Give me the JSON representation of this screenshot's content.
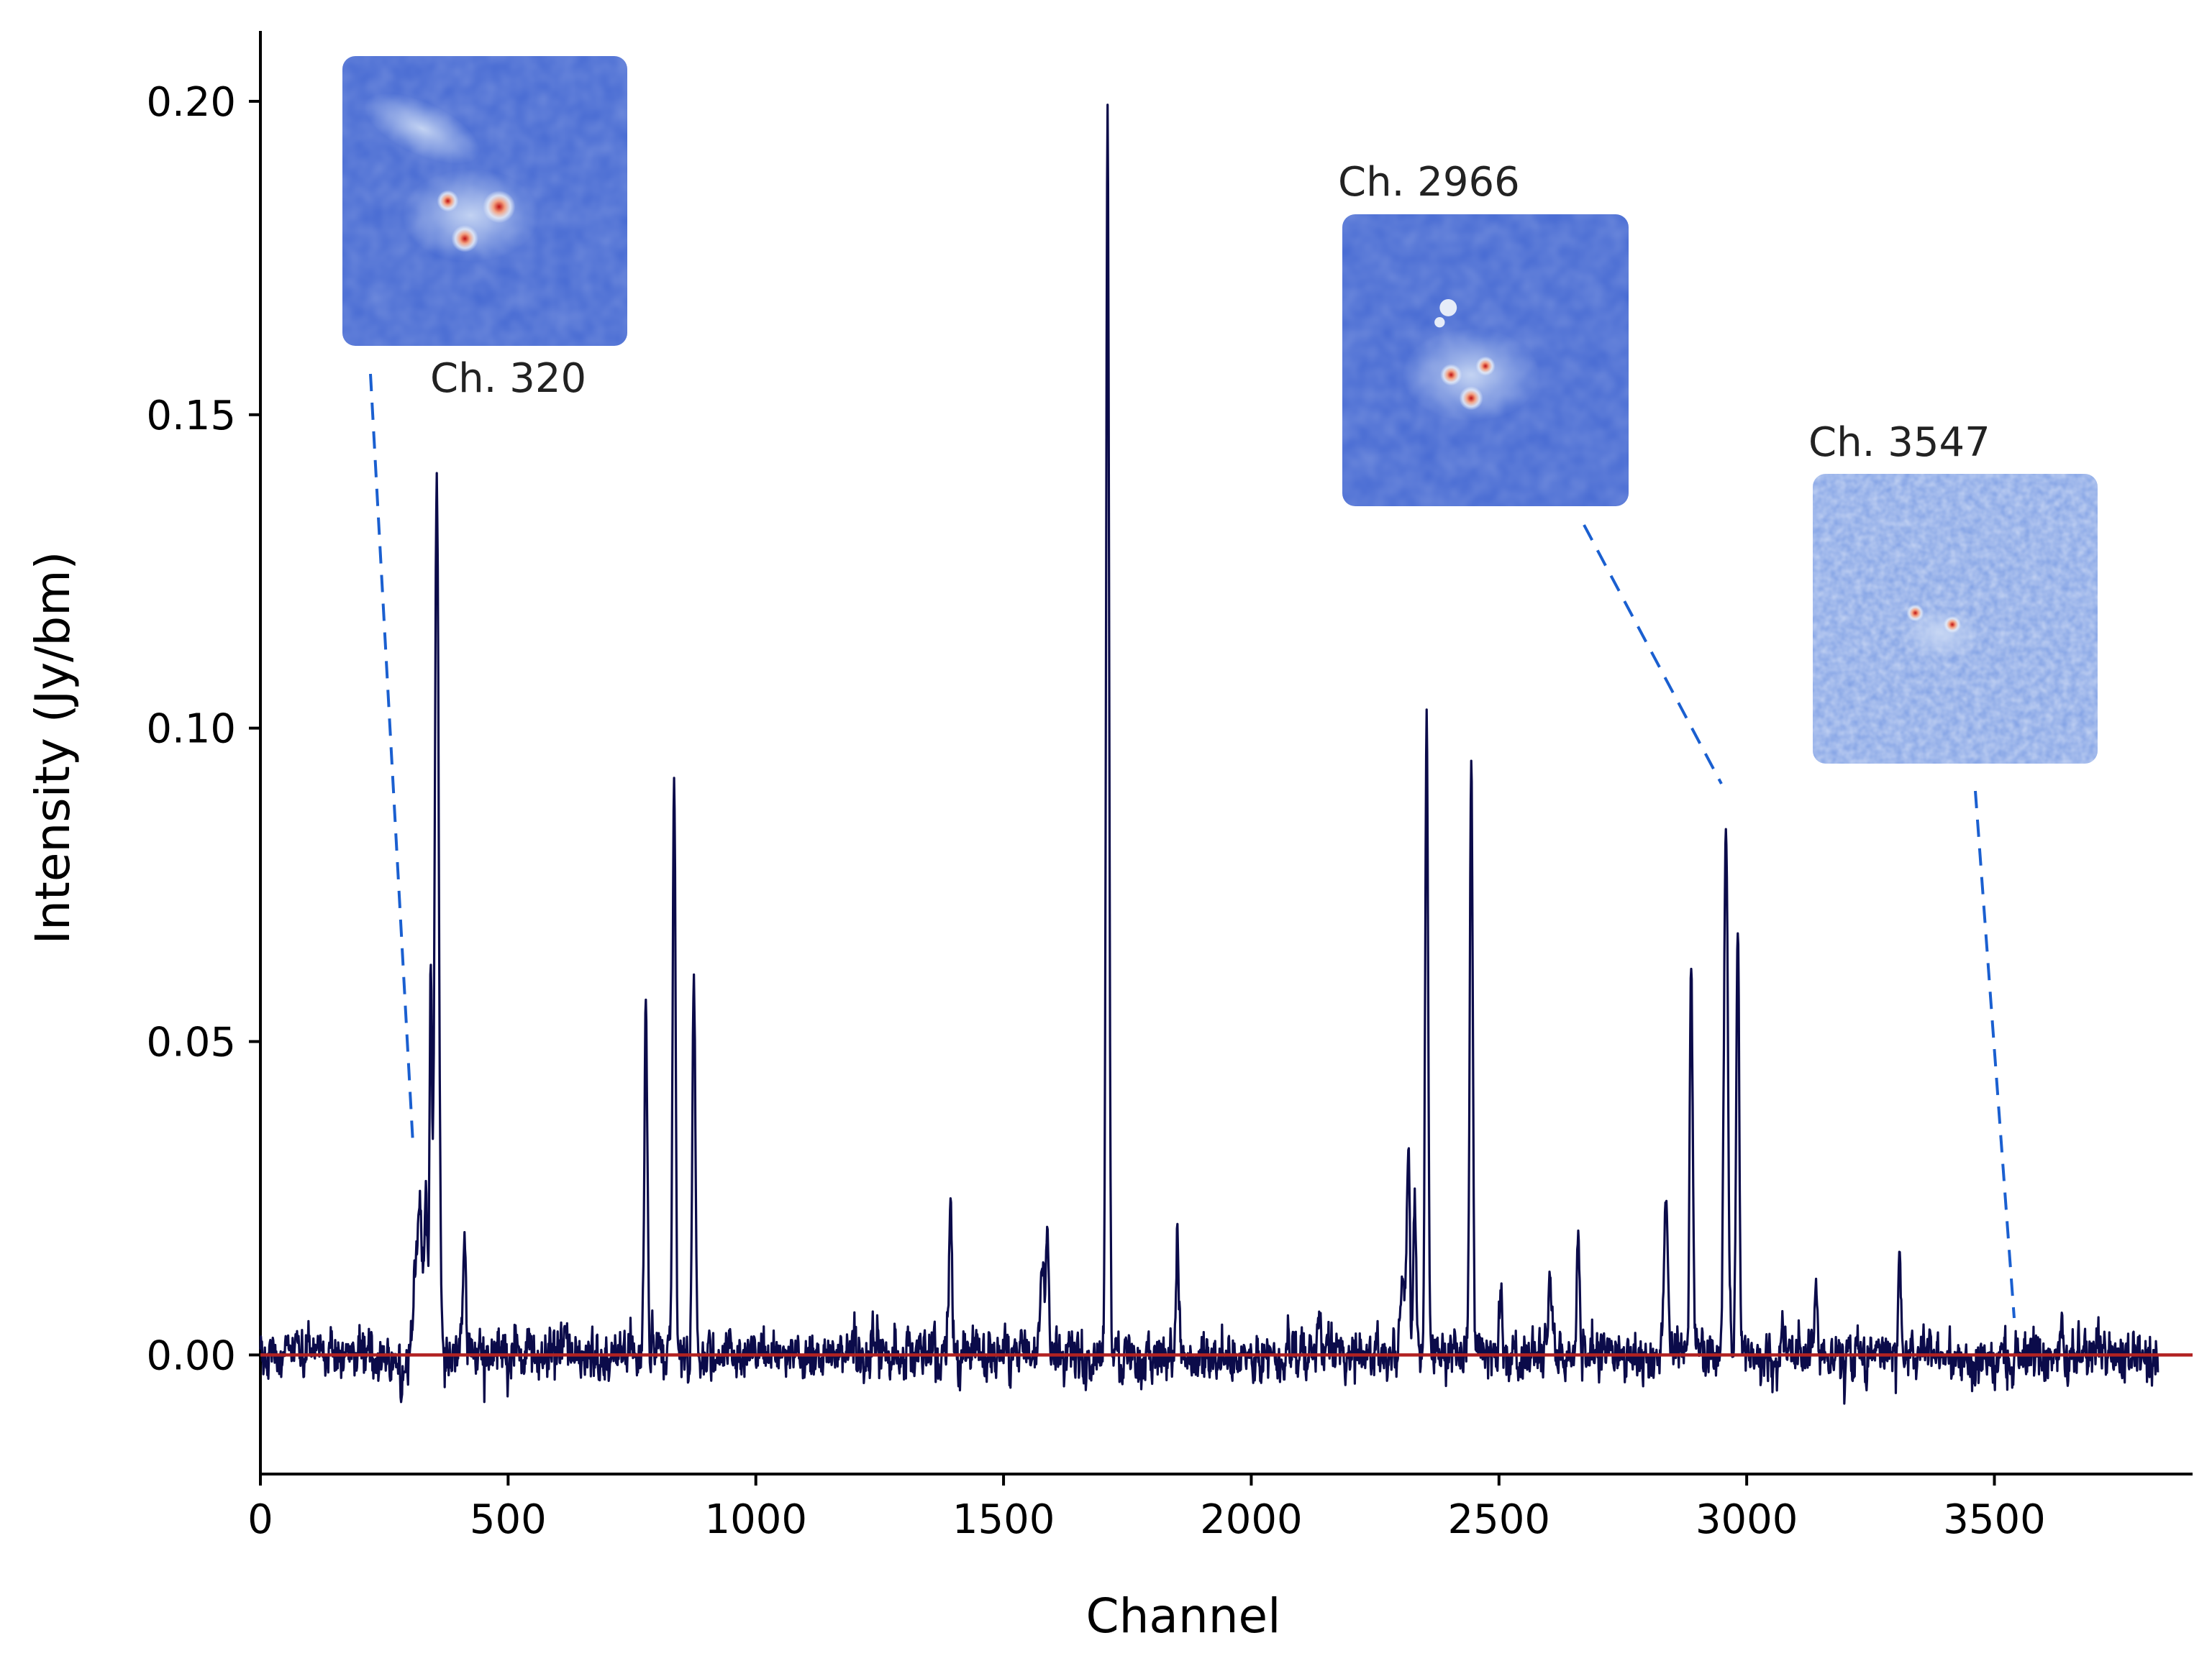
{
  "chart_data": {
    "type": "line",
    "title": "",
    "xlabel": "Channel",
    "ylabel": "Intensity (Jy/bm)",
    "xlim": [
      0,
      3900
    ],
    "ylim": [
      -0.019,
      0.211
    ],
    "xticks": [
      0,
      500,
      1000,
      1500,
      2000,
      2500,
      3000,
      3500
    ],
    "yticks": [
      0.0,
      0.05,
      0.1,
      0.15,
      0.2
    ],
    "ytick_labels": [
      "0.00",
      "0.05",
      "0.10",
      "0.15",
      "0.20"
    ],
    "grid": false,
    "x_end": 3830,
    "noise_sigma": 0.0026,
    "baseline": {
      "y": 0.0,
      "color": "#b22222"
    },
    "series": [
      {
        "color": "#0b0b4a",
        "peaks": [
          {
            "x": 312,
            "height": 0.012,
            "width": 6
          },
          {
            "x": 322,
            "height": 0.022,
            "width": 4
          },
          {
            "x": 334,
            "height": 0.026,
            "width": 3
          },
          {
            "x": 344,
            "height": 0.06,
            "width": 2.5
          },
          {
            "x": 356,
            "height": 0.142,
            "width": 4
          },
          {
            "x": 412,
            "height": 0.018,
            "width": 3
          },
          {
            "x": 778,
            "height": 0.058,
            "width": 3
          },
          {
            "x": 835,
            "height": 0.093,
            "width": 3
          },
          {
            "x": 875,
            "height": 0.061,
            "width": 3
          },
          {
            "x": 1393,
            "height": 0.023,
            "width": 3
          },
          {
            "x": 1578,
            "height": 0.015,
            "width": 4
          },
          {
            "x": 1588,
            "height": 0.02,
            "width": 3
          },
          {
            "x": 1710,
            "height": 0.199,
            "width": 3
          },
          {
            "x": 1851,
            "height": 0.019,
            "width": 3
          },
          {
            "x": 2136,
            "height": 0.009,
            "width": 3
          },
          {
            "x": 2306,
            "height": 0.012,
            "width": 5
          },
          {
            "x": 2317,
            "height": 0.034,
            "width": 3
          },
          {
            "x": 2330,
            "height": 0.02,
            "width": 3
          },
          {
            "x": 2354,
            "height": 0.102,
            "width": 3
          },
          {
            "x": 2444,
            "height": 0.099,
            "width": 3
          },
          {
            "x": 2504,
            "height": 0.013,
            "width": 3
          },
          {
            "x": 2604,
            "height": 0.012,
            "width": 4
          },
          {
            "x": 2660,
            "height": 0.02,
            "width": 3
          },
          {
            "x": 2837,
            "height": 0.023,
            "width": 4
          },
          {
            "x": 2888,
            "height": 0.064,
            "width": 3
          },
          {
            "x": 2958,
            "height": 0.085,
            "width": 4
          },
          {
            "x": 2982,
            "height": 0.069,
            "width": 3
          },
          {
            "x": 3140,
            "height": 0.011,
            "width": 3
          },
          {
            "x": 3308,
            "height": 0.016,
            "width": 3
          }
        ]
      }
    ],
    "insets": [
      {
        "label": "Ch. 320",
        "channel": 320,
        "style": "dense",
        "blobs": [
          [
            0.55,
            0.52,
            0.03
          ],
          [
            0.43,
            0.63,
            0.025
          ],
          [
            0.37,
            0.5,
            0.02
          ]
        ]
      },
      {
        "label": "Ch. 2966",
        "channel": 2966,
        "style": "dense",
        "blobs": [
          [
            0.45,
            0.63,
            0.022
          ],
          [
            0.38,
            0.55,
            0.02
          ],
          [
            0.5,
            0.52,
            0.018
          ]
        ]
      },
      {
        "label": "Ch. 3547",
        "channel": 3547,
        "style": "noisy",
        "blobs": [
          [
            0.36,
            0.48,
            0.016
          ],
          [
            0.49,
            0.52,
            0.016
          ]
        ]
      }
    ]
  }
}
